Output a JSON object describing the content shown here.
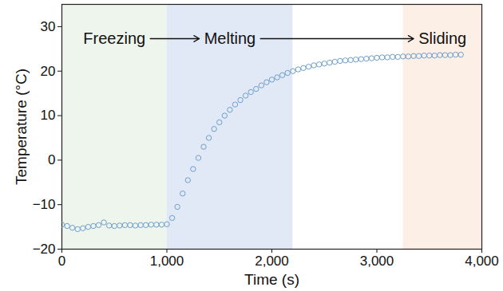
{
  "chart_data": {
    "type": "scatter",
    "x_label": "Time (s)",
    "y_label": "Temperature (°C)",
    "marker": "circle",
    "color": "#6e9fcc",
    "grid": false,
    "xlim": [
      0,
      4000
    ],
    "xticks": [
      0,
      1000,
      2000,
      3000,
      4000
    ],
    "ylim": [
      -20,
      35
    ],
    "yticks": [
      -20,
      -10,
      0,
      10,
      20,
      30
    ],
    "phases": [
      {
        "text": "Freezing",
        "start": 0,
        "end": 1000,
        "color": "#eef5ec"
      },
      {
        "text": "Melting",
        "start": 1000,
        "end": 2200,
        "color": "#e2e9f6"
      },
      {
        "text": "Sliding",
        "start": 3250,
        "end": 4000,
        "color": "#fcefe6"
      }
    ],
    "x": [
      0,
      50,
      100,
      150,
      200,
      250,
      300,
      350,
      400,
      450,
      500,
      550,
      600,
      650,
      700,
      750,
      800,
      850,
      900,
      950,
      1000,
      1050,
      1100,
      1150,
      1200,
      1250,
      1300,
      1350,
      1400,
      1450,
      1500,
      1550,
      1600,
      1650,
      1700,
      1750,
      1800,
      1850,
      1900,
      1950,
      2000,
      2050,
      2100,
      2150,
      2200,
      2250,
      2300,
      2350,
      2400,
      2450,
      2500,
      2550,
      2600,
      2650,
      2700,
      2750,
      2800,
      2850,
      2900,
      2950,
      3000,
      3050,
      3100,
      3150,
      3200,
      3250,
      3300,
      3350,
      3400,
      3450,
      3500,
      3550,
      3600,
      3650,
      3700,
      3750,
      3800
    ],
    "values": [
      -14.5,
      -14.8,
      -15.2,
      -15.5,
      -15.3,
      -15.0,
      -14.8,
      -14.6,
      -14.0,
      -14.7,
      -14.8,
      -14.7,
      -14.6,
      -14.6,
      -14.7,
      -14.6,
      -14.6,
      -14.5,
      -14.5,
      -14.5,
      -14.4,
      -13.0,
      -10.5,
      -7.5,
      -4.5,
      -2.0,
      0.5,
      3.0,
      5.0,
      7.0,
      8.5,
      10.0,
      11.3,
      12.5,
      13.5,
      14.5,
      15.3,
      16.0,
      16.8,
      17.5,
      18.1,
      18.6,
      19.1,
      19.6,
      20.0,
      20.4,
      20.7,
      21.0,
      21.3,
      21.5,
      21.7,
      21.9,
      22.1,
      22.3,
      22.4,
      22.5,
      22.6,
      22.7,
      22.8,
      22.9,
      23.0,
      23.1,
      23.1,
      23.2,
      23.2,
      23.3,
      23.3,
      23.4,
      23.4,
      23.5,
      23.5,
      23.5,
      23.6,
      23.6,
      23.6,
      23.7,
      23.7
    ]
  }
}
